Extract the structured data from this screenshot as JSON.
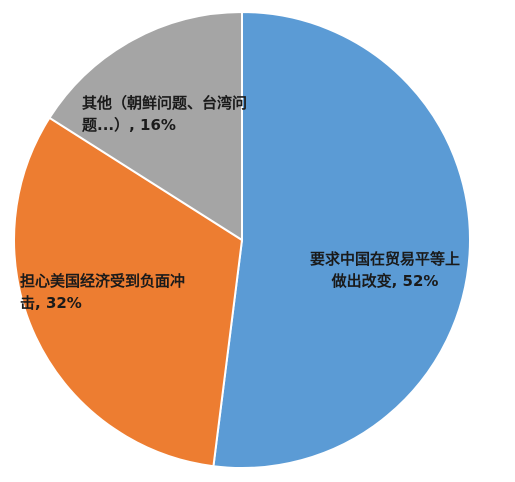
{
  "chart_data": {
    "type": "pie",
    "categories": [
      "要求中国在贸易平等上做出改变,",
      "担心美国经济受到负面冲击,",
      "其他（朝鲜问题、台湾问题...）,"
    ],
    "values": [
      52,
      32,
      16
    ],
    "value_labels": [
      "52%",
      "32%",
      "16%"
    ],
    "colors": [
      "#5b9bd5",
      "#ed7d31",
      "#a5a5a5"
    ]
  }
}
